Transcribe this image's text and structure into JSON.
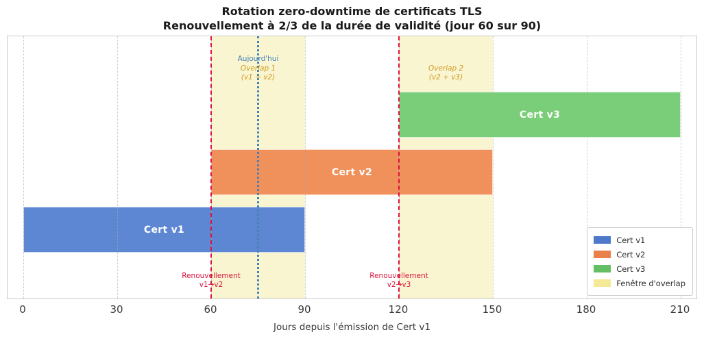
{
  "chart_data": {
    "type": "bar",
    "orientation": "horizontal-gantt-timeline",
    "title": "Rotation zero-downtime de certificats TLS",
    "subtitle": "Renouvellement à 2/3 de la durée de validité (jour 60 sur 90)",
    "xlabel": "Jours depuis l'émission de Cert v1",
    "xlim": [
      0,
      210
    ],
    "xticks": [
      0,
      30,
      60,
      90,
      120,
      150,
      180,
      210
    ],
    "grid": "vertical-dashed",
    "bars": [
      {
        "name": "Cert v1",
        "start": 0,
        "end": 90,
        "row": 0,
        "color": "#5d87d2"
      },
      {
        "name": "Cert v2",
        "start": 60,
        "end": 150,
        "row": 1,
        "color": "#f0905b"
      },
      {
        "name": "Cert v3",
        "start": 120,
        "end": 210,
        "row": 2,
        "color": "#7bce79"
      }
    ],
    "overlap_windows": [
      {
        "name": "Overlap 1",
        "detail": "(v1 + v2)",
        "start": 60,
        "end": 90,
        "label_x": 75,
        "color": "#f0e68c"
      },
      {
        "name": "Overlap 2",
        "detail": "(v2 + v3)",
        "start": 120,
        "end": 150,
        "label_x": 135,
        "color": "#f0e68c"
      }
    ],
    "renewal_events": [
      {
        "line1": "Renouvellement",
        "line2": "v1→v2",
        "x": 60,
        "color": "#dc143c"
      },
      {
        "line1": "Renouvellement",
        "line2": "v2→v3",
        "x": 120,
        "color": "#dc143c"
      }
    ],
    "today_marker": {
      "label": "Aujourd'hui",
      "x": 75,
      "color": "#4682b4"
    },
    "legend": {
      "position": "lower right",
      "items": [
        {
          "label": "Cert v1",
          "color": "#4d79cb"
        },
        {
          "label": "Cert v2",
          "color": "#e8814a"
        },
        {
          "label": "Cert v3",
          "color": "#64bf64"
        },
        {
          "label": "Fenêtre d'overlap",
          "color": "#f5e897"
        }
      ]
    }
  }
}
